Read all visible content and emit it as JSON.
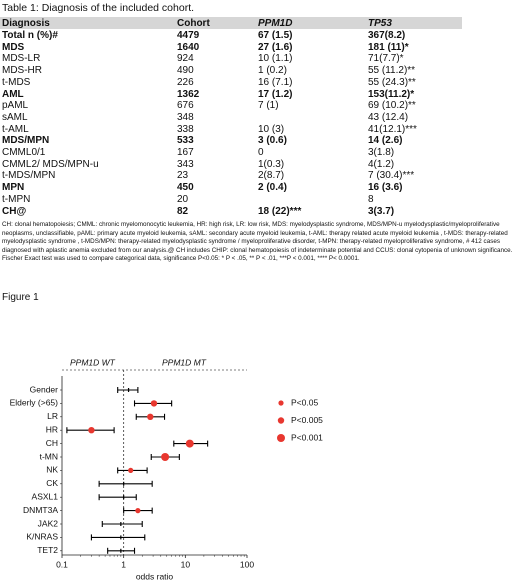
{
  "table": {
    "title": "Table 1: Diagnosis of the included cohort.",
    "header": [
      "Diagnosis",
      "Cohort",
      "PPM1D",
      "TP53"
    ],
    "rows": [
      {
        "bold": true,
        "cells": [
          "Total n (%)#",
          "4479",
          "67 (1.5)",
          "367(8.2)"
        ]
      },
      {
        "bold": true,
        "cells": [
          "MDS",
          "1640",
          "27 (1.6)",
          "181 (11)*"
        ]
      },
      {
        "bold": false,
        "cells": [
          "MDS-LR",
          "924",
          "10 (1.1)",
          "71(7.7)*"
        ]
      },
      {
        "bold": false,
        "cells": [
          "MDS-HR",
          "490",
          "1 (0.2)",
          "55 (11.2)**"
        ]
      },
      {
        "bold": false,
        "cells": [
          "t-MDS",
          "226",
          "16 (7.1)",
          "55 (24.3)**"
        ]
      },
      {
        "bold": true,
        "cells": [
          "AML",
          "1362",
          "17 (1.2)",
          "153(11.2)*"
        ]
      },
      {
        "bold": false,
        "cells": [
          "pAML",
          "676",
          "7 (1)",
          "69 (10.2)**"
        ]
      },
      {
        "bold": false,
        "cells": [
          "sAML",
          "348",
          null,
          "43 (12.4)"
        ]
      },
      {
        "bold": false,
        "cells": [
          "t-AML",
          "338",
          "10 (3)",
          "41(12.1)***"
        ]
      },
      {
        "bold": true,
        "cells": [
          "MDS/MPN",
          "533",
          "3 (0.6)",
          "14 (2.6)"
        ]
      },
      {
        "bold": false,
        "cells": [
          "CMML0/1",
          "167",
          "0",
          "3(1.8)"
        ]
      },
      {
        "bold": false,
        "cells": [
          "CMML2/ MDS/MPN-u",
          "343",
          "1(0.3)",
          "4(1.2)"
        ]
      },
      {
        "bold": false,
        "cells": [
          "t-MDS/MPN",
          "23",
          "2(8.7)",
          "7 (30.4)***"
        ]
      },
      {
        "bold": true,
        "cells": [
          "MPN",
          "450",
          "2 (0.4)",
          "16 (3.6)"
        ]
      },
      {
        "bold": false,
        "cells": [
          "t-MPN",
          "20",
          null,
          "8"
        ]
      },
      {
        "bold": true,
        "cells": [
          "CH@",
          "82",
          "18 (22)***",
          "3(3.7)"
        ]
      }
    ],
    "footnote": "CH: clonal hematopoiesis; CMML: chronic myelomonocytic leukemia, HR: high risk, LR: low risk, MDS: myelodysplastic syndrome, MDS/MPN-u myelodysplastic/myeloproliferative neoplasms, unclassifiable, pAML: primary acute myeloid leukemia, sAML: secondary acute myeloid leukemia, t-AML: therapy related acute myeloid leukemia , t-MDS: therapy-related myelodysplastic syndrome , t-MDS/MPN: therapy-related myelodysplastic syndrome / myeloproliferative disorder, t-MPN: therapy-related myeloproliferative syndrome, # 412 cases diagnosed with aplastic anemia excluded from our analysis.@ CH includes CHIP: clonal hematopoiesis of indeterminate potential and CCUS: clonal cytopenia of unknown significance. Fischer Exact test was used to compare categorical data, significance P<0.05: * P < .05, ** P < .01, ***P < 0.001, **** P< 0.0001."
  },
  "chart_data": {
    "type": "forest",
    "title": "Figure 1",
    "group_labels": [
      "PPM1D WT",
      "PPM1D MT"
    ],
    "group_colors": [
      "#222222",
      "#2b2bb5"
    ],
    "x_label": "odds ratio",
    "log_x": true,
    "xlim": [
      0.1,
      100
    ],
    "xticks": [
      0.1,
      1,
      10,
      100
    ],
    "reference": 1,
    "legend": "right",
    "categories": [
      "Gender",
      "Elderly (>65)",
      "LR",
      "HR",
      "CH",
      "t-MN",
      "NK",
      "CK",
      "ASXL1",
      "DNMT3A",
      "JAK2",
      "K/NRAS",
      "TET2"
    ],
    "series": [
      {
        "color": "#000000",
        "values": [
          1.2,
          null,
          null,
          null,
          null,
          null,
          null,
          1.0,
          1.0,
          null,
          0.9,
          0.9,
          0.9
        ],
        "low": [
          0.8,
          null,
          null,
          null,
          null,
          null,
          null,
          0.4,
          0.4,
          null,
          0.45,
          0.3,
          0.55
        ],
        "high": [
          1.7,
          null,
          null,
          null,
          null,
          null,
          null,
          2.9,
          1.6,
          null,
          2.0,
          2.2,
          1.5
        ]
      },
      {
        "name": "P<0.05",
        "color": "#e8372f",
        "values": [
          null,
          null,
          null,
          null,
          null,
          null,
          1.3,
          null,
          null,
          1.7,
          null,
          null,
          null
        ],
        "low": [
          null,
          null,
          null,
          null,
          null,
          null,
          0.8,
          null,
          null,
          1.0,
          null,
          null,
          null
        ],
        "high": [
          null,
          null,
          null,
          null,
          null,
          null,
          2.4,
          null,
          null,
          2.9,
          null,
          null,
          null
        ]
      },
      {
        "name": "P<0.005",
        "color": "#e8372f",
        "values": [
          null,
          3.1,
          2.7,
          0.3,
          null,
          null,
          null,
          null,
          null,
          null,
          null,
          null,
          null
        ],
        "low": [
          null,
          1.5,
          1.6,
          0.12,
          null,
          null,
          null,
          null,
          null,
          null,
          null,
          null,
          null
        ],
        "high": [
          null,
          6,
          4.6,
          0.7,
          null,
          null,
          null,
          null,
          null,
          null,
          null,
          null,
          null
        ]
      },
      {
        "name": "P<0.001",
        "color": "#e8372f",
        "values": [
          null,
          null,
          null,
          null,
          11.8,
          4.7,
          null,
          null,
          null,
          null,
          null,
          null,
          null
        ],
        "low": [
          null,
          null,
          null,
          null,
          6.5,
          2.8,
          null,
          null,
          null,
          null,
          null,
          null,
          null
        ],
        "high": [
          null,
          null,
          null,
          null,
          23,
          8,
          null,
          null,
          null,
          null,
          null,
          null,
          null
        ]
      }
    ]
  }
}
